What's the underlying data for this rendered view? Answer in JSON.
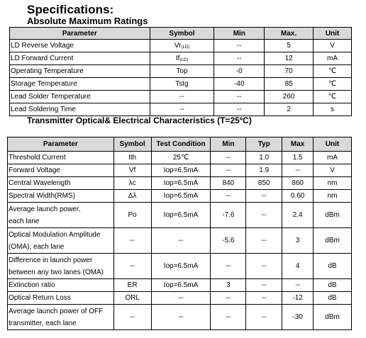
{
  "title": "Specifications:",
  "abs_max": {
    "heading": "Absolute Maximum Ratings",
    "headers": [
      "Parameter",
      "Symbol",
      "Min",
      "Max.",
      "Unit"
    ],
    "rows": [
      {
        "param": "LD Reverse Voltage",
        "sym": "Vr",
        "sub": "(LD)",
        "min": "--",
        "max": "5",
        "unit": "V"
      },
      {
        "param": "LD Forward Current",
        "sym": "If",
        "sub": "(LD)",
        "min": "--",
        "max": "12",
        "unit": "mA"
      },
      {
        "param": "Operating Temperature",
        "sym": "Top",
        "sub": "",
        "min": "-0",
        "max": "70",
        "unit": "℃"
      },
      {
        "param": "Storage Temperature",
        "sym": "Tstg",
        "sub": "",
        "min": "-40",
        "max": "85",
        "unit": "℃"
      },
      {
        "param": "Lead Solder Temperature",
        "sym": "--",
        "sub": "",
        "min": "--",
        "max": "260",
        "unit": "℃"
      },
      {
        "param": "Lead Soldering Time",
        "sym": "--",
        "sub": "",
        "min": "--",
        "max": "2",
        "unit": "s"
      }
    ]
  },
  "optical": {
    "heading": "Transmitter Optical& Electrical Characteristics (T=25ºC)",
    "headers": [
      "Parameter",
      "Symbol",
      "Test Condition",
      "Min",
      "Typ",
      "Max",
      "Unit"
    ],
    "rows": [
      {
        "param": [
          "Threshold Current"
        ],
        "sym": "Ith",
        "cond": "25℃",
        "min": "--",
        "typ": "1.0",
        "max": "1.5",
        "unit": "mA"
      },
      {
        "param": [
          "Forward Voltage"
        ],
        "sym": "Vf",
        "cond": "Iop=6.5mA",
        "min": "--",
        "typ": "1.9",
        "max": "--",
        "unit": "V"
      },
      {
        "param": [
          "Central Wavelength"
        ],
        "sym": "λc",
        "cond": "Iop=6.5mA",
        "min": "840",
        "typ": "850",
        "max": "860",
        "unit": "nm"
      },
      {
        "param": [
          "Spectral Width(RMS)"
        ],
        "sym": "Δλ",
        "cond": "Iop=6.5mA",
        "min": "--",
        "typ": "--",
        "max": "0.60",
        "unit": "nm"
      },
      {
        "param": [
          "Average launch power,",
          "each lane"
        ],
        "sym": "Po",
        "cond": "Iop=6.5mA",
        "min": "-7.6",
        "typ": "--",
        "max": "2.4",
        "unit": "dBm"
      },
      {
        "param": [
          "Optical Modulation Amplitude",
          "(OMA), each lane"
        ],
        "sym": "--",
        "cond": "--",
        "min": "-5.6",
        "typ": "--",
        "max": "3",
        "unit": "dBm"
      },
      {
        "param": [
          "Difference in launch power",
          "between any two lanes (OMA)"
        ],
        "sym": "--",
        "cond": "Iop=6.5mA",
        "min": "--",
        "typ": "--",
        "max": "4",
        "unit": "dB"
      },
      {
        "param": [
          "Extinction ratio"
        ],
        "sym": "ER",
        "cond": "Iop=6.5mA",
        "min": "3",
        "typ": "--",
        "max": "--",
        "unit": "dB"
      },
      {
        "param": [
          "Optical Return Loss"
        ],
        "sym": "ORL",
        "cond": "--",
        "min": "--",
        "typ": "--",
        "max": "-12",
        "unit": "dB"
      },
      {
        "param": [
          "Average launch power of OFF",
          "transmitter, each lane"
        ],
        "sym": "--",
        "cond": "--",
        "min": "--",
        "typ": "--",
        "max": "-30",
        "unit": "dBm"
      }
    ]
  }
}
